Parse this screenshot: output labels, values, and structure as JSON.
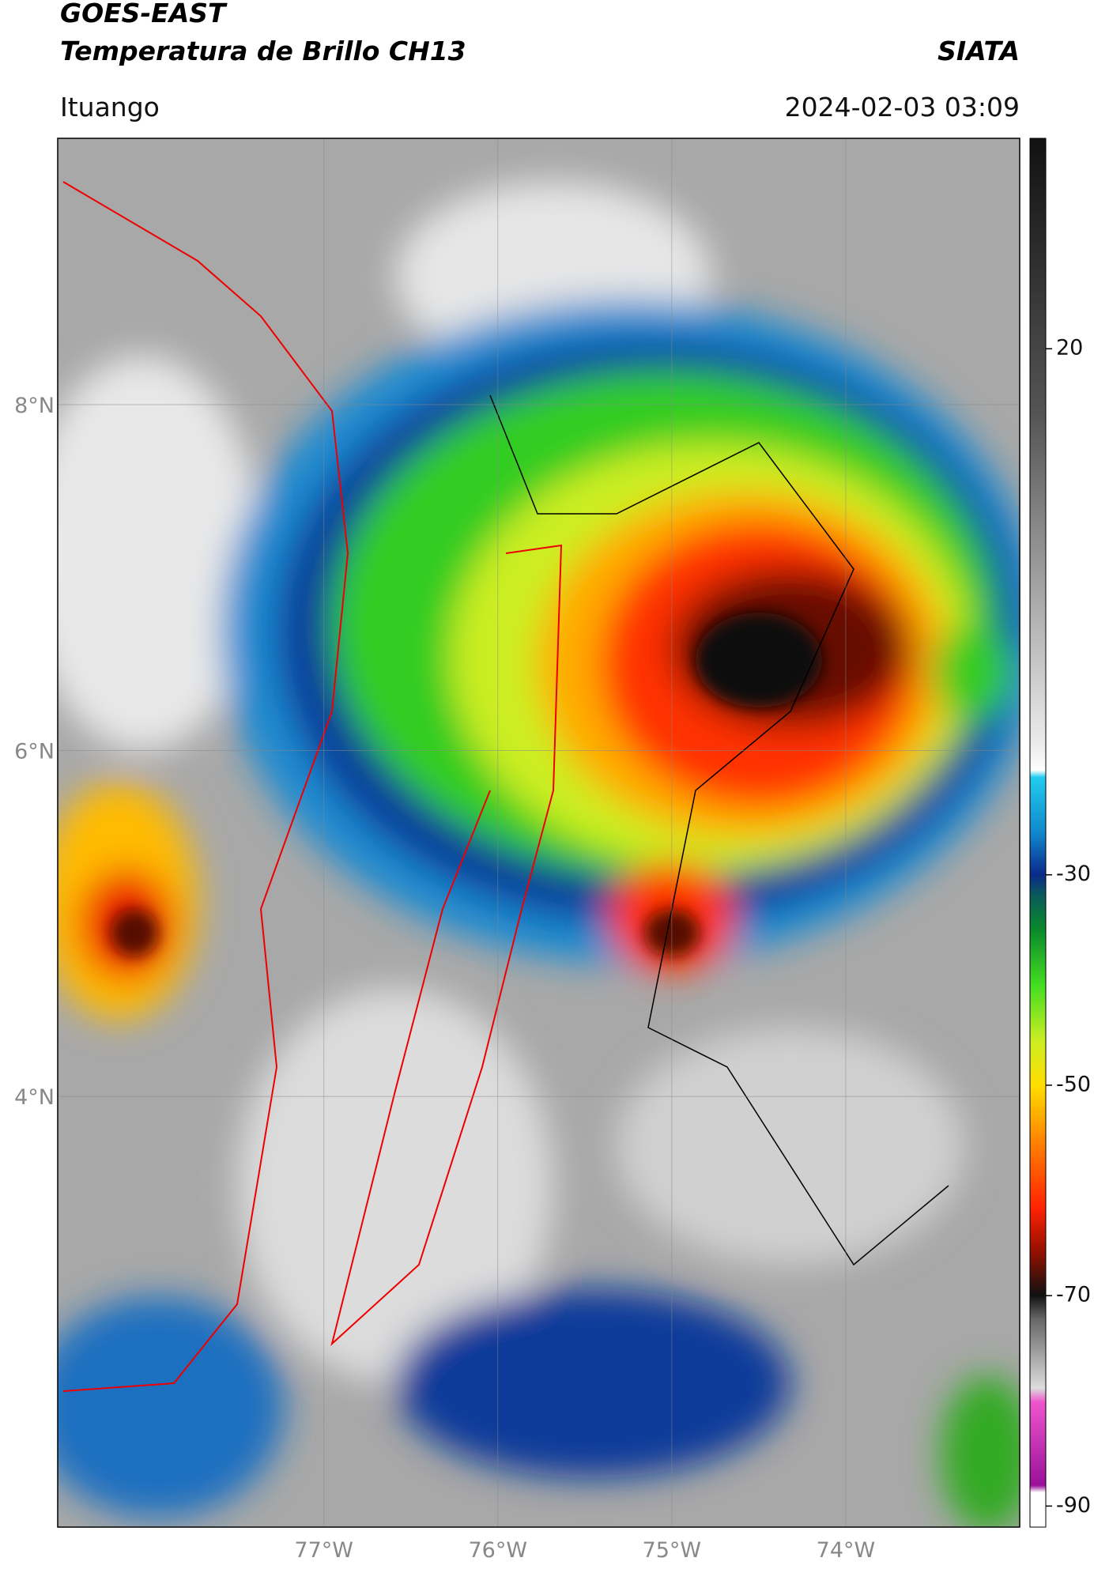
{
  "header": {
    "title": "GOES-EAST",
    "subtitle": "Temperatura de Brillo CH13",
    "brand": "SIATA",
    "location": "Ituango",
    "datetime": "2024-02-03 03:09"
  },
  "map": {
    "lonlim": [
      -78.53,
      -73.0
    ],
    "latlim": [
      1.51,
      9.54
    ],
    "xticks": [
      {
        "value": -77,
        "label": "77°W"
      },
      {
        "value": -76,
        "label": "76°W"
      },
      {
        "value": -75,
        "label": "75°W"
      },
      {
        "value": -74,
        "label": "74°W"
      }
    ],
    "yticks": [
      {
        "value": 8,
        "label": "8°N"
      },
      {
        "value": 6,
        "label": "6°N"
      },
      {
        "value": 4,
        "label": "4°N"
      }
    ],
    "grid": true
  },
  "colorbar": {
    "lim": [
      -92,
      40
    ],
    "ticks": [
      -90,
      -70,
      -50,
      -30,
      20
    ]
  }
}
